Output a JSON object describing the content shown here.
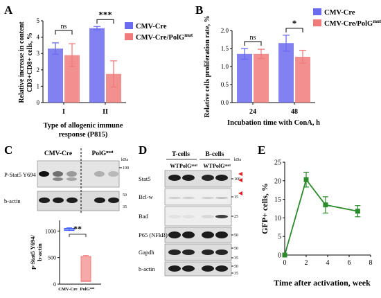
{
  "panels": {
    "A": {
      "letter": "A"
    },
    "B": {
      "letter": "B"
    },
    "C": {
      "letter": "C"
    },
    "D": {
      "letter": "D"
    },
    "E": {
      "letter": "E"
    }
  },
  "chart_data": [
    {
      "id": "A",
      "type": "bar",
      "categories": [
        "I",
        "II"
      ],
      "series": [
        {
          "name": "CMV-Cre",
          "values": [
            3.3,
            4.55
          ],
          "errors": [
            0.35,
            0.1
          ],
          "color": "#6b6bf0"
        },
        {
          "name": "CMV-Cre/PolG",
          "name_sup": "mut",
          "values": [
            2.9,
            1.75
          ],
          "errors": [
            0.7,
            0.8
          ],
          "color": "#f07b7b"
        }
      ],
      "xlabel": "Type of allogenic immune response (P815)",
      "xlabel_lines": [
        "Type of allogenic immune",
        "response (P815)"
      ],
      "ylabel_lines": [
        "Relative increase in content",
        "CD3+CD8+ cells, %"
      ],
      "ylim": [
        0,
        5
      ],
      "yticks": [
        "0",
        "1",
        "2",
        "3",
        "4",
        "5"
      ],
      "significance": [
        "ns",
        "***"
      ],
      "legend": "top-right"
    },
    {
      "id": "B",
      "type": "bar",
      "categories": [
        "24",
        "48"
      ],
      "series": [
        {
          "name": "CMV-Cre",
          "values": [
            1.35,
            1.65
          ],
          "errors": [
            0.15,
            0.22
          ],
          "color": "#6b6bf0"
        },
        {
          "name": "CMV-Cre/PolG",
          "name_sup": "mut",
          "values": [
            1.35,
            1.27
          ],
          "errors": [
            0.13,
            0.18
          ],
          "color": "#f07b7b"
        }
      ],
      "xlabel": "Incubation time with ConA, h",
      "ylabel": "Relative cells proliferation rate, %",
      "ylim": [
        0,
        2.0
      ],
      "yticks": [
        "0.0",
        "0.5",
        "1.0",
        "1.5",
        "2.0"
      ],
      "significance": [
        "ns",
        "*"
      ],
      "legend": "top-right"
    },
    {
      "id": "C-box",
      "type": "box",
      "categories": [
        "CMV-Cre",
        "PolG"
      ],
      "category_sup": [
        null,
        "mut"
      ],
      "series": [
        {
          "name": "CMV-Cre",
          "median": 1030,
          "q1": 1010,
          "q3": 1050,
          "min": 1000,
          "max": 1060,
          "color": "#3b5bff"
        },
        {
          "name": "PolG",
          "median": 60,
          "q1": 50,
          "q3": 520,
          "min": 50,
          "max": 540,
          "color": "#f07b7b"
        }
      ],
      "ylabel_lines": [
        "p-Stat5 Y694/",
        "b-actin"
      ],
      "ylim": [
        0,
        1200
      ],
      "yticks": [
        "0",
        "500",
        "1000"
      ],
      "significance": "**"
    },
    {
      "id": "E",
      "type": "line",
      "x": [
        0,
        2,
        3.8,
        6.8
      ],
      "y": [
        0,
        20.3,
        13.5,
        11.8
      ],
      "errors": [
        0,
        2.0,
        2.2,
        1.5
      ],
      "color": "#2b8a2b",
      "xlabel": "Time after activation, week",
      "ylabel": "GFP+ cells, %",
      "xlim": [
        0,
        8
      ],
      "ylim": [
        0,
        25
      ],
      "xticks": [
        "0",
        "2",
        "4",
        "6",
        "8"
      ],
      "yticks": [
        "0",
        "5",
        "10",
        "15",
        "20",
        "25"
      ]
    }
  ],
  "blotC": {
    "group1": "CMV-Cre",
    "group2": "PolG",
    "group2_sup": "mut",
    "kda": "kDa",
    "rows": [
      {
        "label": "P-Stat5 Y694",
        "markers": [
          "100"
        ]
      },
      {
        "label": "b-actin",
        "markers": [
          "50",
          "35"
        ]
      }
    ]
  },
  "blotD": {
    "group1": "T-cells",
    "group2": "B-cells",
    "lanes": [
      "WT",
      "PolG",
      "WT",
      "PolG"
    ],
    "lane_sup": [
      null,
      "mut",
      null,
      "mut"
    ],
    "kda": "kDa",
    "rows": [
      {
        "label": "Stat5",
        "markers": [
          "100"
        ]
      },
      {
        "label": "Bcl-w",
        "markers": [
          "15"
        ]
      },
      {
        "label": "Bad",
        "markers": [
          "25"
        ]
      },
      {
        "label": "P65 (NFkB)",
        "markers": [
          "50"
        ]
      },
      {
        "label": "Gapdh",
        "markers": [
          "50",
          "35"
        ]
      },
      {
        "label": "b-actin",
        "markers": [
          "50",
          "35"
        ]
      }
    ]
  }
}
